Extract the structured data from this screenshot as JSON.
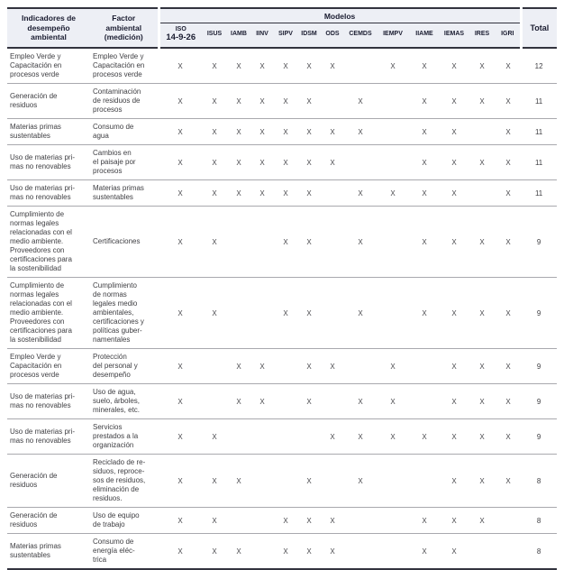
{
  "colors": {
    "header_bg": "#edeff5",
    "header_text": "#1a1c30",
    "body_text": "#3e3e42",
    "mark_color": "#4a4a4e",
    "rule_dark": "#32333e",
    "rule_light": "#a9a9ae"
  },
  "table": {
    "header": {
      "col_indicator": "Indicadores de\ndesempeño\nambiental",
      "col_factor": "Factor\nambiental\n(medición)",
      "models_group": "Modelos",
      "total_label": "Total",
      "models": [
        {
          "name": "ISO",
          "sub": "14-9-26"
        },
        {
          "name": "ISUS"
        },
        {
          "name": "IAMB"
        },
        {
          "name": "IINV"
        },
        {
          "name": "SIPV"
        },
        {
          "name": "IDSM"
        },
        {
          "name": "ODS"
        },
        {
          "name": "CEMDS"
        },
        {
          "name": "IEMPV"
        },
        {
          "name": "IIAME"
        },
        {
          "name": "IEMAS"
        },
        {
          "name": "IRES"
        },
        {
          "name": "IGRI"
        }
      ]
    },
    "rows": [
      {
        "indicator": "Empleo Verde y\nCapacitación en\nprocesos verde",
        "factor": "Empleo Verde y\nCapacitación en\nprocesos verde",
        "marks": [
          "X",
          "X",
          "X",
          "X",
          "X",
          "X",
          "X",
          "",
          "X",
          "X",
          "X",
          "X",
          "X"
        ],
        "total": 12
      },
      {
        "indicator": "Generación de\nresiduos",
        "factor": "Contaminación\nde residuos de\nprocesos",
        "marks": [
          "X",
          "X",
          "X",
          "X",
          "X",
          "X",
          "",
          "X",
          "",
          "X",
          "X",
          "X",
          "X"
        ],
        "total": 11
      },
      {
        "indicator": "Materias primas\nsustentables",
        "factor": "Consumo de\nagua",
        "marks": [
          "X",
          "X",
          "X",
          "X",
          "X",
          "X",
          "X",
          "X",
          "",
          "X",
          "X",
          "",
          "X"
        ],
        "total": 11
      },
      {
        "indicator": "Uso de materias pri-\nmas no renovables",
        "factor": "Cambios en\nel paisaje por\nprocesos",
        "marks": [
          "X",
          "X",
          "X",
          "X",
          "X",
          "X",
          "X",
          "",
          "",
          "X",
          "X",
          "X",
          "X"
        ],
        "total": 11
      },
      {
        "indicator": "Uso de materias pri-\nmas no renovables",
        "factor": "Materias primas\nsustentables",
        "marks": [
          "X",
          "X",
          "X",
          "X",
          "X",
          "X",
          "",
          "X",
          "X",
          "X",
          "X",
          "",
          "X"
        ],
        "total": 11
      },
      {
        "indicator": "Cumplimiento de\nnormas legales\nrelacionadas con el\nmedio ambiente.\nProveedores con\ncertificaciones para\nla sostenibilidad",
        "factor": "Certificaciones",
        "marks": [
          "X",
          "X",
          "",
          "",
          "X",
          "X",
          "",
          "X",
          "",
          "X",
          "X",
          "X",
          "X"
        ],
        "total": 9
      },
      {
        "indicator": "Cumplimiento de\nnormas legales\nrelacionadas con el\nmedio ambiente.\nProveedores con\ncertificaciones para\nla sostenibilidad",
        "factor": "Cumplimiento\nde normas\nlegales medio\nambientales,\ncertificaciones y\npolíticas guber-\nnamentales",
        "marks": [
          "X",
          "X",
          "",
          "",
          "X",
          "X",
          "",
          "X",
          "",
          "X",
          "X",
          "X",
          "X"
        ],
        "total": 9
      },
      {
        "indicator": "Empleo Verde y\nCapacitación en\nprocesos verde",
        "factor": "Protección\ndel personal y\ndesempeño",
        "marks": [
          "X",
          "",
          "X",
          "X",
          "",
          "X",
          "X",
          "",
          "X",
          "",
          "X",
          "X",
          "X"
        ],
        "total": 9
      },
      {
        "indicator": "Uso de materias pri-\nmas no renovables",
        "factor": "Uso de agua,\nsuelo, árboles,\nminerales, etc.",
        "marks": [
          "X",
          "",
          "X",
          "X",
          "",
          "X",
          "",
          "X",
          "X",
          "",
          "X",
          "X",
          "X"
        ],
        "total": 9
      },
      {
        "indicator": "Uso de materias pri-\nmas no renovables",
        "factor": "Servicios\nprestados a la\norganización",
        "marks": [
          "X",
          "X",
          "",
          "",
          "",
          "",
          "X",
          "X",
          "X",
          "X",
          "X",
          "X",
          "X"
        ],
        "total": 9
      },
      {
        "indicator": "Generación de\nresiduos",
        "factor": "Reciclado de re-\nsiduos, reproce-\nsos de residuos,\neliminación de\nresiduos.",
        "marks": [
          "X",
          "X",
          "X",
          "",
          "",
          "X",
          "",
          "X",
          "",
          "",
          "X",
          "X",
          "X"
        ],
        "total": 8
      },
      {
        "indicator": "Generación de\nresiduos",
        "factor": "Uso de equipo\nde trabajo",
        "marks": [
          "X",
          "X",
          "",
          "",
          "X",
          "X",
          "X",
          "",
          "",
          "X",
          "X",
          "X",
          ""
        ],
        "total": 8
      },
      {
        "indicator": "Materias primas\nsustentables",
        "factor": "Consumo de\nenergía eléc-\ntrica",
        "marks": [
          "X",
          "X",
          "X",
          "",
          "X",
          "X",
          "X",
          "",
          "",
          "X",
          "X",
          "",
          ""
        ],
        "total": 8
      }
    ]
  }
}
